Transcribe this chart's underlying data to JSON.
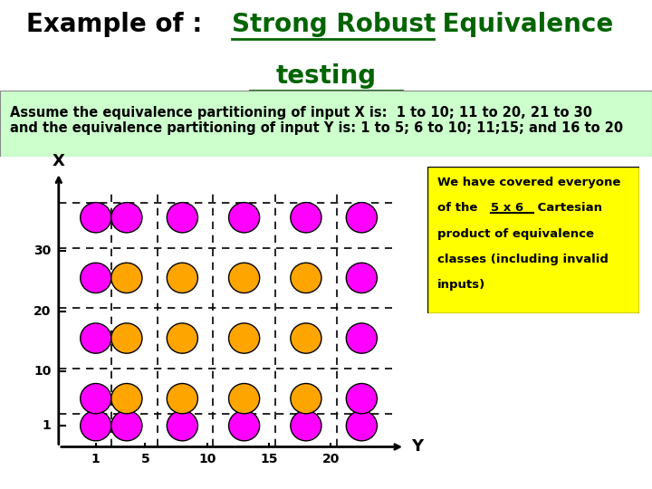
{
  "title_black": "Example of : ",
  "title_green_underlined": "Strong Robust",
  "title_green": " Equivalence",
  "title_line2": "testing",
  "title_color": "#006400",
  "subtitle_text": "Assume the equivalence partitioning of input X is:  1 to 10; 11 to 20, 21 to 30\nand the equivalence partitioning of input Y is: 1 to 5; 6 to 10; 11;15; and 16 to 20",
  "subtitle_bg": "#ccffcc",
  "magenta_color": "#FF00FF",
  "orange_color": "#FFA500",
  "annotation_bg": "#FFFF00",
  "bg_color": "#ffffff",
  "dot_x_positions": [
    1,
    3.5,
    8.0,
    13.0,
    18.0,
    22.5
  ],
  "dot_y_positions": [
    1,
    5.5,
    15.5,
    25.5,
    35.5
  ],
  "v_lines": [
    2.25,
    6.0,
    10.5,
    15.5,
    20.5
  ],
  "h_lines": [
    3.0,
    10.5,
    20.5,
    30.5,
    38.0
  ],
  "x_tick_vals": [
    1,
    10,
    20,
    30
  ],
  "x_tick_labels": [
    "1",
    "10",
    "20",
    "30"
  ],
  "y_tick_vals": [
    1,
    5,
    10,
    15,
    20
  ],
  "y_tick_labels": [
    "1",
    "5",
    "10",
    "15",
    "20"
  ]
}
